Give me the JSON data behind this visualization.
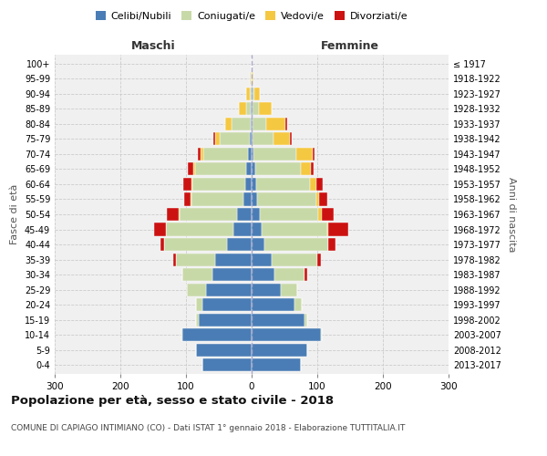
{
  "age_groups": [
    "0-4",
    "5-9",
    "10-14",
    "15-19",
    "20-24",
    "25-29",
    "30-34",
    "35-39",
    "40-44",
    "45-49",
    "50-54",
    "55-59",
    "60-64",
    "65-69",
    "70-74",
    "75-79",
    "80-84",
    "85-89",
    "90-94",
    "95-99",
    "100+"
  ],
  "birth_years": [
    "2013-2017",
    "2008-2012",
    "2003-2007",
    "1998-2002",
    "1993-1997",
    "1988-1992",
    "1983-1987",
    "1978-1982",
    "1973-1977",
    "1968-1972",
    "1963-1967",
    "1958-1962",
    "1953-1957",
    "1948-1952",
    "1943-1947",
    "1938-1942",
    "1933-1937",
    "1928-1932",
    "1923-1927",
    "1918-1922",
    "≤ 1917"
  ],
  "colors": {
    "celibe": "#4A7DB5",
    "coniugato": "#C8D9A8",
    "vedovo": "#F5C842",
    "divorziato": "#CC1111"
  },
  "m_celibe": [
    75,
    85,
    105,
    80,
    75,
    70,
    60,
    55,
    38,
    28,
    22,
    12,
    10,
    8,
    5,
    3,
    2,
    1,
    0,
    0,
    0
  ],
  "m_coniugato": [
    0,
    0,
    2,
    5,
    10,
    28,
    45,
    60,
    96,
    102,
    88,
    80,
    80,
    78,
    68,
    45,
    28,
    8,
    3,
    1,
    0
  ],
  "m_vedovo": [
    0,
    0,
    0,
    0,
    0,
    0,
    0,
    0,
    0,
    1,
    1,
    1,
    2,
    3,
    5,
    8,
    10,
    10,
    5,
    2,
    0
  ],
  "m_divorziato": [
    0,
    0,
    0,
    0,
    0,
    0,
    0,
    5,
    5,
    18,
    18,
    10,
    12,
    8,
    4,
    2,
    0,
    0,
    0,
    0,
    0
  ],
  "f_nubile": [
    75,
    85,
    105,
    80,
    65,
    45,
    35,
    30,
    20,
    15,
    12,
    8,
    7,
    5,
    3,
    2,
    2,
    1,
    1,
    0,
    0
  ],
  "f_coniugata": [
    0,
    0,
    2,
    5,
    12,
    25,
    45,
    70,
    96,
    100,
    90,
    90,
    82,
    70,
    65,
    32,
    20,
    10,
    3,
    1,
    0
  ],
  "f_vedova": [
    0,
    0,
    0,
    0,
    0,
    0,
    0,
    0,
    0,
    2,
    5,
    5,
    10,
    15,
    25,
    25,
    30,
    20,
    8,
    2,
    0
  ],
  "f_divorziata": [
    0,
    0,
    0,
    0,
    0,
    0,
    5,
    5,
    12,
    30,
    18,
    12,
    10,
    5,
    3,
    2,
    2,
    0,
    0,
    0,
    0
  ],
  "xlim": 300,
  "title": "Popolazione per età, sesso e stato civile - 2018",
  "subtitle": "COMUNE DI CAPIAGO INTIMIANO (CO) - Dati ISTAT 1° gennaio 2018 - Elaborazione TUTTITALIA.IT",
  "ylabel_left": "Fasce di età",
  "ylabel_right": "Anni di nascita",
  "xlabel_maschi": "Maschi",
  "xlabel_femmine": "Femmine"
}
